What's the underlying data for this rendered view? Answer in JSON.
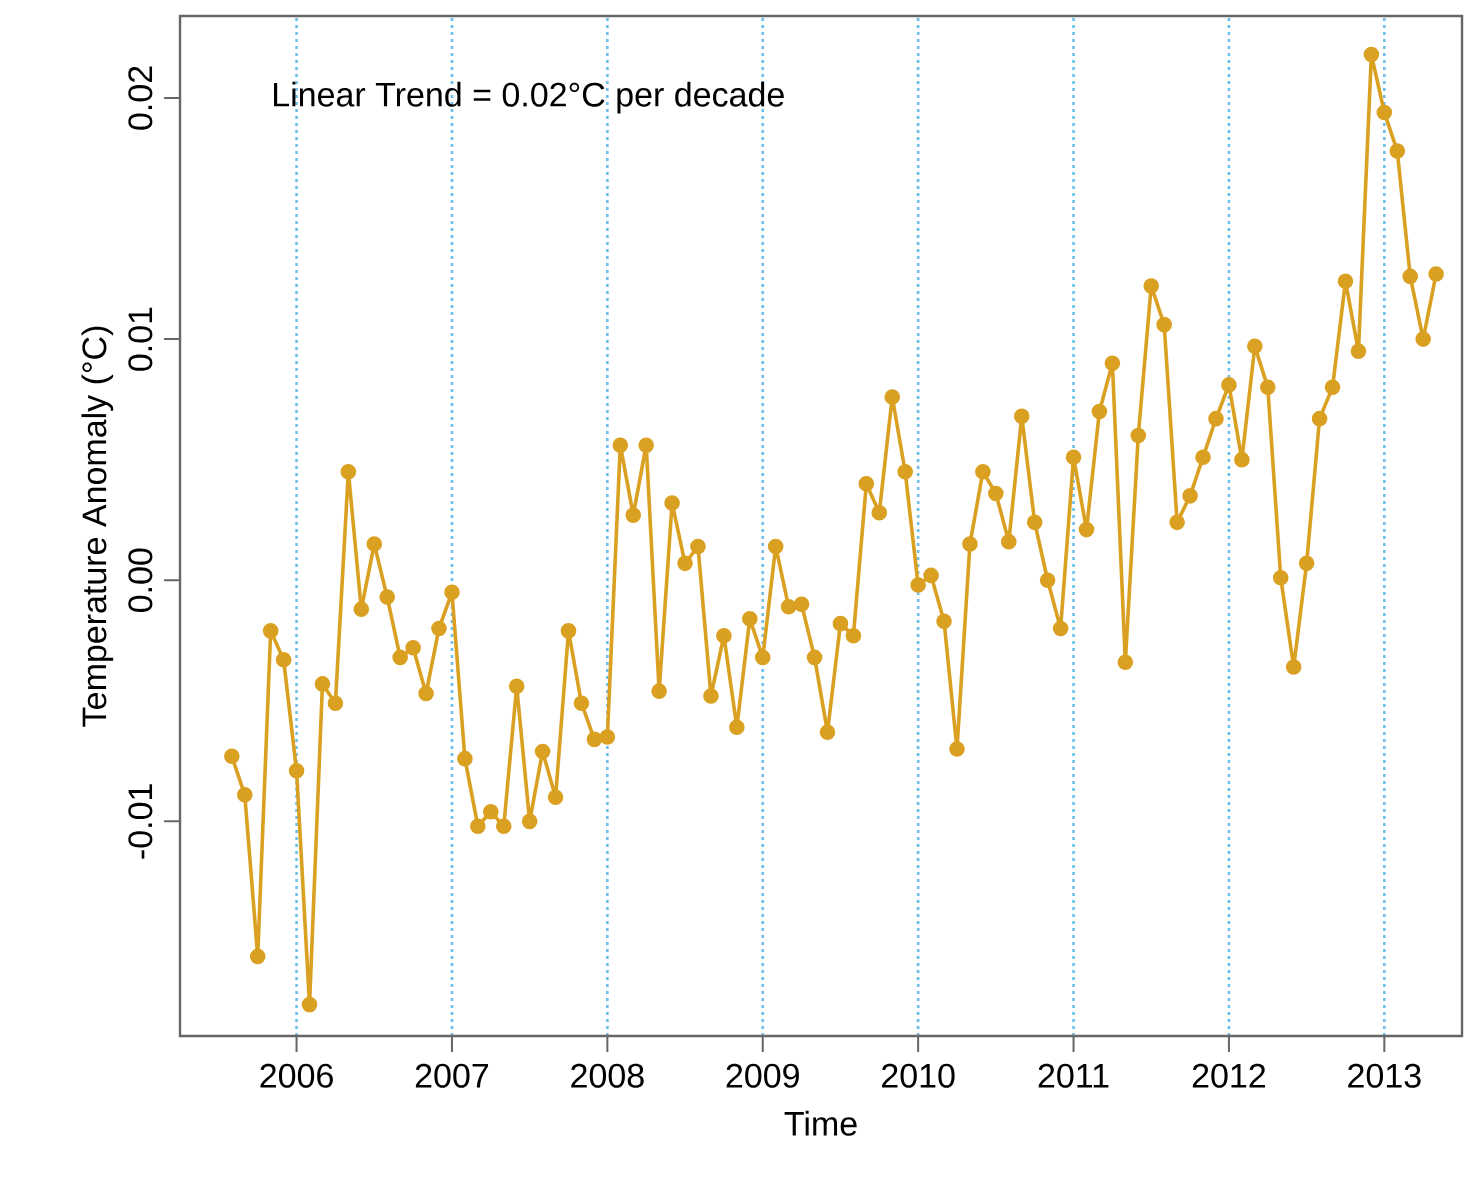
{
  "chart_data": {
    "type": "line",
    "xlabel": "Time",
    "ylabel": "Temperature Anomaly (°C)",
    "annotations": [
      "Linear Trend = 0.02°C per decade"
    ],
    "x": [
      "2005-08",
      "2005-09",
      "2005-10",
      "2005-11",
      "2005-12",
      "2006-01",
      "2006-02",
      "2006-03",
      "2006-04",
      "2006-05",
      "2006-06",
      "2006-07",
      "2006-08",
      "2006-09",
      "2006-10",
      "2006-11",
      "2006-12",
      "2007-01",
      "2007-02",
      "2007-03",
      "2007-04",
      "2007-05",
      "2007-06",
      "2007-07",
      "2007-08",
      "2007-09",
      "2007-10",
      "2007-11",
      "2007-12",
      "2008-01",
      "2008-02",
      "2008-03",
      "2008-04",
      "2008-05",
      "2008-06",
      "2008-07",
      "2008-08",
      "2008-09",
      "2008-10",
      "2008-11",
      "2008-12",
      "2009-01",
      "2009-02",
      "2009-03",
      "2009-04",
      "2009-05",
      "2009-06",
      "2009-07",
      "2009-08",
      "2009-09",
      "2009-10",
      "2009-11",
      "2009-12",
      "2010-01",
      "2010-02",
      "2010-03",
      "2010-04",
      "2010-05",
      "2010-06",
      "2010-07",
      "2010-08",
      "2010-09",
      "2010-10",
      "2010-11",
      "2010-12",
      "2011-01",
      "2011-02",
      "2011-03",
      "2011-04",
      "2011-05",
      "2011-06",
      "2011-07",
      "2011-08",
      "2011-09",
      "2011-10",
      "2011-11",
      "2011-12",
      "2012-01",
      "2012-02",
      "2012-03",
      "2012-04",
      "2012-05",
      "2012-06",
      "2012-07",
      "2012-08",
      "2012-09",
      "2012-10",
      "2012-11",
      "2012-12",
      "2013-01",
      "2013-02",
      "2013-03",
      "2013-04",
      "2013-05"
    ],
    "series": [
      {
        "color": "#daa021",
        "values": [
          -0.0073,
          -0.0089,
          -0.0156,
          -0.0021,
          -0.0033,
          -0.0079,
          -0.0176,
          -0.0043,
          -0.0051,
          0.0045,
          -0.0012,
          0.0015,
          -0.0007,
          -0.0032,
          -0.0028,
          -0.0047,
          -0.002,
          -0.0005,
          -0.0074,
          -0.0102,
          -0.0096,
          -0.0102,
          -0.0044,
          -0.01,
          -0.0071,
          -0.009,
          -0.0021,
          -0.0051,
          -0.0066,
          -0.0065,
          0.0056,
          0.0027,
          0.0056,
          -0.0046,
          0.0032,
          0.0007,
          0.0014,
          -0.0048,
          -0.0023,
          -0.0061,
          -0.0016,
          -0.0032,
          0.0014,
          -0.0011,
          -0.001,
          -0.0032,
          -0.0063,
          -0.0018,
          -0.0023,
          0.004,
          0.0028,
          0.0076,
          0.0045,
          -0.0002,
          0.0002,
          -0.0017,
          -0.007,
          0.0015,
          0.0045,
          0.0036,
          0.0016,
          0.0068,
          0.0024,
          0.0,
          -0.002,
          0.0051,
          0.0021,
          0.007,
          0.009,
          -0.0034,
          0.006,
          0.0122,
          0.0106,
          0.0024,
          0.0035,
          0.0051,
          0.0067,
          0.0081,
          0.005,
          0.0097,
          0.008,
          0.0001,
          -0.0036,
          0.0007,
          0.0067,
          0.008,
          0.0124,
          0.0095,
          0.0218,
          0.0194,
          0.0178,
          0.0126,
          0.01,
          0.0127
        ]
      }
    ],
    "xlim": [
      "2005-04",
      "2013-07"
    ],
    "xticks": [
      "2006",
      "2007",
      "2008",
      "2009",
      "2010",
      "2011",
      "2012",
      "2013"
    ],
    "ylim": [
      -0.0189,
      0.0234
    ],
    "yticks": [
      -0.01,
      {
        "value": 0,
        "label": "0.00"
      },
      0.01,
      0.02
    ],
    "grid": "x",
    "marker": "circle",
    "line_style": "solid"
  }
}
